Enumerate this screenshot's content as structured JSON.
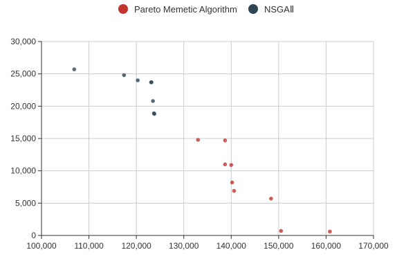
{
  "chart_data": {
    "type": "scatter",
    "title": "",
    "xlabel": "",
    "ylabel": "",
    "xlim": [
      100000,
      170000
    ],
    "ylim": [
      0,
      30000
    ],
    "x_ticks": [
      100000,
      110000,
      120000,
      130000,
      140000,
      150000,
      160000,
      170000
    ],
    "x_tick_labels": [
      "100,000",
      "110,000",
      "120,000",
      "130,000",
      "140,000",
      "150,000",
      "160,000",
      "170,000"
    ],
    "y_ticks": [
      0,
      5000,
      10000,
      15000,
      20000,
      25000,
      30000
    ],
    "y_tick_labels": [
      "0",
      "5,000",
      "10,000",
      "15,000",
      "20,000",
      "25,000",
      "30,000"
    ],
    "grid": true,
    "legend_position": "top-center",
    "series": [
      {
        "name": "Pareto Memetic Algorithm",
        "color": "#c23531",
        "points": [
          [
            133000,
            14800
          ],
          [
            138700,
            14700
          ],
          [
            138700,
            11000
          ],
          [
            140000,
            10900
          ],
          [
            140200,
            8200
          ],
          [
            140600,
            6900
          ],
          [
            148400,
            5700
          ],
          [
            150500,
            700
          ],
          [
            160800,
            600
          ]
        ]
      },
      {
        "name": "NSGAⅡ",
        "color": "#2f4554",
        "points": [
          [
            106900,
            25700
          ],
          [
            117400,
            24800
          ],
          [
            120300,
            24000
          ],
          [
            123100,
            23700
          ],
          [
            123200,
            23700
          ],
          [
            123500,
            20800
          ],
          [
            123700,
            18900
          ],
          [
            123800,
            18800
          ]
        ]
      }
    ]
  }
}
